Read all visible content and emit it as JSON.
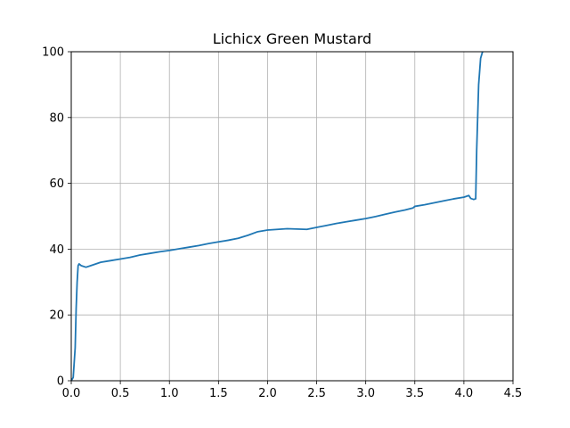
{
  "chart_data": {
    "type": "line",
    "title": "Lichicx Green Mustard",
    "xlabel": "",
    "ylabel": "",
    "xlim": [
      0,
      4.5
    ],
    "ylim": [
      0,
      100
    ],
    "grid": true,
    "xticks": [
      "0.0",
      "0.5",
      "1.0",
      "1.5",
      "2.0",
      "2.5",
      "3.0",
      "3.5",
      "4.0",
      "4.5"
    ],
    "yticks": [
      "0",
      "20",
      "40",
      "60",
      "80",
      "100"
    ],
    "series": [
      {
        "color": "#1f77b4",
        "x": [
          0.0,
          0.02,
          0.04,
          0.05,
          0.06,
          0.07,
          0.08,
          0.1,
          0.15,
          0.2,
          0.25,
          0.3,
          0.4,
          0.5,
          0.6,
          0.7,
          0.8,
          0.9,
          1.0,
          1.1,
          1.2,
          1.3,
          1.4,
          1.5,
          1.6,
          1.7,
          1.8,
          1.9,
          2.0,
          2.1,
          2.2,
          2.3,
          2.4,
          2.5,
          2.6,
          2.7,
          2.8,
          2.9,
          3.0,
          3.1,
          3.2,
          3.3,
          3.4,
          3.48,
          3.5,
          3.6,
          3.7,
          3.8,
          3.9,
          4.0,
          4.05,
          4.07,
          4.1,
          4.12,
          4.13,
          4.15,
          4.17,
          4.19
        ],
        "y": [
          0,
          1,
          10,
          22,
          30,
          35,
          35.5,
          35,
          34.5,
          35,
          35.5,
          36,
          36.5,
          37,
          37.5,
          38.2,
          38.7,
          39.2,
          39.6,
          40.1,
          40.6,
          41.1,
          41.7,
          42.2,
          42.7,
          43.3,
          44.2,
          45.3,
          45.8,
          46.0,
          46.2,
          46.1,
          46.0,
          46.6,
          47.2,
          47.8,
          48.3,
          48.8,
          49.3,
          49.9,
          50.6,
          51.3,
          51.9,
          52.5,
          53.0,
          53.5,
          54.1,
          54.7,
          55.3,
          55.8,
          56.3,
          55.4,
          55.1,
          55.3,
          70,
          90,
          98,
          100
        ]
      }
    ]
  }
}
